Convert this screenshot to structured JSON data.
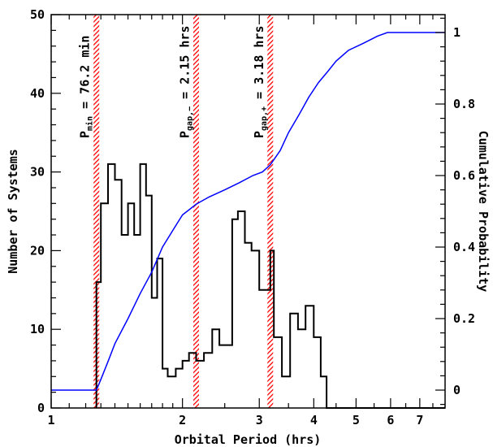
{
  "chart_data": {
    "type": "line",
    "xlabel": "Orbital Period (hrs)",
    "ylabel": "Number of Systems",
    "ylabel_right": "Cumulative Probability",
    "x_scale": "log",
    "xlim": [
      1,
      8
    ],
    "ylim": [
      0,
      50
    ],
    "ylim_right": [
      -0.05,
      1.05
    ],
    "x_ticks": [
      1,
      2,
      3,
      4,
      5,
      6,
      7
    ],
    "x_tick_labels": [
      "1",
      "2",
      "3",
      "4",
      "5",
      "6",
      "7"
    ],
    "y_ticks": [
      0,
      10,
      20,
      30,
      40,
      50
    ],
    "y_tick_labels": [
      "0",
      "10",
      "20",
      "30",
      "40",
      "50"
    ],
    "y_right_ticks": [
      0,
      0.2,
      0.4,
      0.6,
      0.8,
      1
    ],
    "y_right_tick_labels": [
      "0",
      "0.2",
      "0.4",
      "0.6",
      "0.8",
      "1"
    ],
    "grid": false,
    "markers": [
      {
        "x": 1.27,
        "label_main": "P",
        "label_sub": "min",
        "label_rest": " = 76.2 min"
      },
      {
        "x": 2.15,
        "label_main": "P",
        "label_sub": "gap,−",
        "label_rest": " = 2.15 hrs"
      },
      {
        "x": 3.18,
        "label_main": "P",
        "label_sub": "gap,+",
        "label_rest": " = 3.18 hrs"
      }
    ],
    "series": [
      {
        "kind": "histogram",
        "color": "#000000",
        "edges": [
          1.27,
          1.3,
          1.35,
          1.4,
          1.45,
          1.5,
          1.55,
          1.6,
          1.65,
          1.7,
          1.75,
          1.8,
          1.85,
          1.93,
          2.0,
          2.07,
          2.15,
          2.24,
          2.34,
          2.43,
          2.52,
          2.6,
          2.68,
          2.78,
          2.88,
          3.0,
          3.18,
          3.24,
          3.38,
          3.53,
          3.68,
          3.83,
          4.0,
          4.15,
          4.28,
          4.43,
          4.6,
          4.8,
          5.0,
          5.2,
          5.45,
          5.72,
          6.0,
          6.3,
          8.0
        ],
        "values": [
          16,
          26,
          31,
          29,
          22,
          26,
          22,
          31,
          27,
          14,
          19,
          5,
          4,
          5,
          6,
          7,
          6,
          7,
          10,
          8,
          8,
          24,
          25,
          21,
          20,
          15,
          20,
          9,
          4,
          12,
          10,
          13,
          9,
          4,
          0,
          0,
          0,
          0,
          0,
          0,
          0,
          0,
          0,
          0
        ]
      },
      {
        "kind": "cumulative",
        "color": "#0000ff",
        "x": [
          1.0,
          1.27,
          1.3,
          1.35,
          1.4,
          1.5,
          1.6,
          1.7,
          1.8,
          1.93,
          2.0,
          2.1,
          2.15,
          2.3,
          2.5,
          2.7,
          2.9,
          3.05,
          3.18,
          3.35,
          3.5,
          3.7,
          3.9,
          4.1,
          4.3,
          4.5,
          4.8,
          5.2,
          5.6,
          5.9,
          6.0,
          8.0
        ],
        "y": [
          0.0,
          0.0,
          0.03,
          0.08,
          0.13,
          0.2,
          0.27,
          0.33,
          0.4,
          0.46,
          0.49,
          0.51,
          0.52,
          0.54,
          0.56,
          0.58,
          0.6,
          0.61,
          0.63,
          0.67,
          0.72,
          0.77,
          0.82,
          0.86,
          0.89,
          0.92,
          0.95,
          0.97,
          0.99,
          1.0,
          1.0,
          1.0
        ]
      }
    ]
  }
}
